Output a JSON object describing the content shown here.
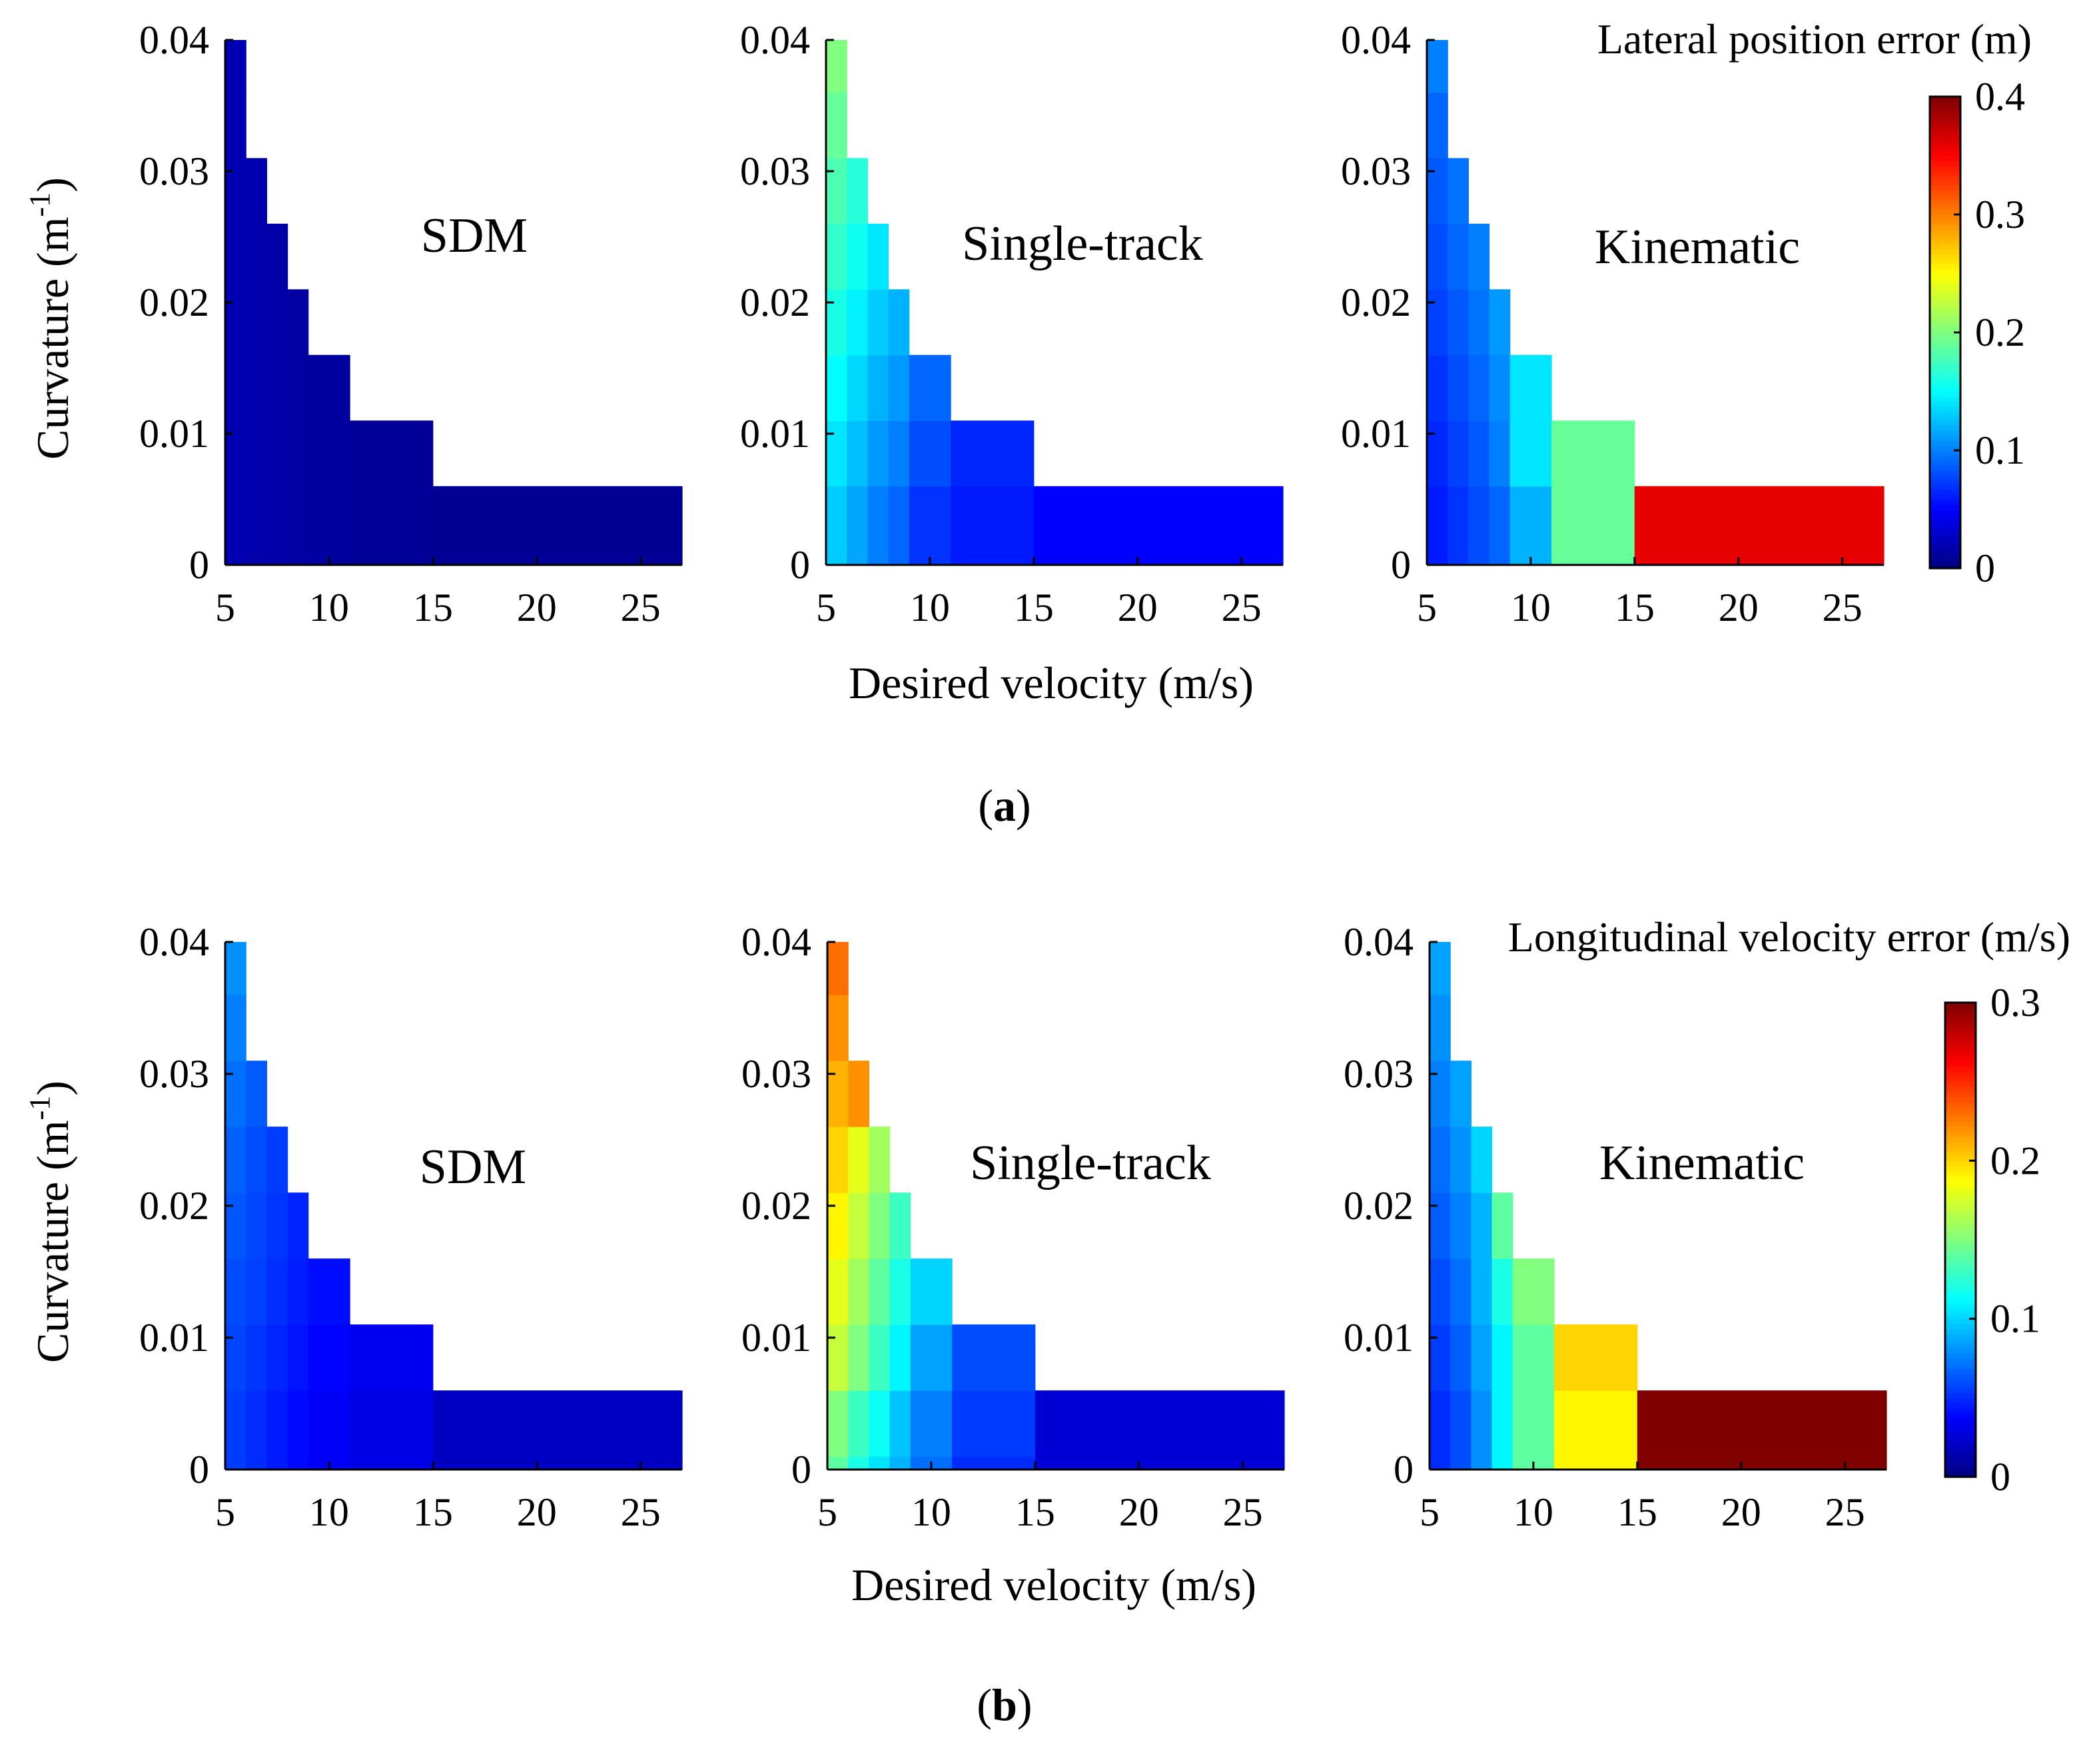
{
  "subfigure_labels": {
    "a": {
      "open": "(",
      "letter": "a",
      "close": ")"
    },
    "b": {
      "open": "(",
      "letter": "b",
      "close": ")"
    }
  },
  "shared": {
    "xlabel": "Desired velocity (m/s)",
    "ylabel_main": "Curvature (m",
    "ylabel_sup": "-1",
    "ylabel_close": ")"
  },
  "chart_data": [
    {
      "type": "heatmap",
      "panel_id": "a",
      "colorbar_title": "Lateral position error (m)",
      "colorbar_range": [
        0,
        0.4
      ],
      "colorbar_ticks": [
        "0",
        "0.1",
        "0.2",
        "0.3",
        "0.4"
      ],
      "xlim": [
        5,
        27
      ],
      "ylim": [
        0,
        0.04
      ],
      "xticks": [
        "5",
        "10",
        "15",
        "20",
        "25"
      ],
      "yticks": [
        "0",
        "0.01",
        "0.02",
        "0.03",
        "0.04"
      ],
      "xlabel": "Desired velocity (m/s)",
      "ylabel": "Curvature (m-1)",
      "velocity_edges": [
        5,
        6,
        7,
        8,
        9,
        11,
        15,
        27
      ],
      "curvature_edges": [
        0,
        0.001,
        0.006,
        0.011,
        0.016,
        0.021,
        0.026,
        0.031,
        0.036,
        0.04
      ],
      "models": [
        {
          "name": "SDM",
          "values": [
            [
              0.02,
              0.018,
              0.016,
              0.014,
              0.012,
              0.01,
              0.008
            ],
            [
              0.02,
              0.018,
              0.016,
              0.014,
              0.012,
              0.01,
              0.008
            ],
            [
              0.02,
              0.018,
              0.016,
              0.014,
              0.012,
              0.01,
              null
            ],
            [
              0.02,
              0.018,
              0.016,
              0.014,
              0.012,
              null,
              null
            ],
            [
              0.02,
              0.018,
              0.016,
              0.014,
              null,
              null,
              null
            ],
            [
              0.02,
              0.018,
              0.016,
              null,
              null,
              null,
              null
            ],
            [
              0.02,
              0.018,
              null,
              null,
              null,
              null,
              null
            ],
            [
              0.02,
              null,
              null,
              null,
              null,
              null,
              null
            ],
            [
              0.02,
              null,
              null,
              null,
              null,
              null,
              null
            ]
          ]
        },
        {
          "name": "Single-track",
          "values": [
            [
              0.13,
              0.115,
              0.1,
              0.09,
              0.07,
              0.06,
              0.05
            ],
            [
              0.13,
              0.115,
              0.1,
              0.09,
              0.07,
              0.06,
              0.05
            ],
            [
              0.14,
              0.125,
              0.11,
              0.1,
              0.08,
              0.065,
              null
            ],
            [
              0.15,
              0.135,
              0.12,
              0.11,
              0.09,
              null,
              null
            ],
            [
              0.16,
              0.145,
              0.13,
              0.12,
              null,
              null,
              null
            ],
            [
              0.17,
              0.155,
              0.14,
              null,
              null,
              null,
              null
            ],
            [
              0.18,
              0.165,
              null,
              null,
              null,
              null,
              null
            ],
            [
              0.19,
              null,
              null,
              null,
              null,
              null,
              null
            ],
            [
              0.2,
              null,
              null,
              null,
              null,
              null,
              null
            ]
          ]
        },
        {
          "name": "Kinematic",
          "values": [
            [
              0.06,
              0.07,
              0.08,
              0.09,
              0.12,
              0.19,
              0.36
            ],
            [
              0.06,
              0.07,
              0.08,
              0.09,
              0.12,
              0.19,
              0.36
            ],
            [
              0.065,
              0.075,
              0.085,
              0.1,
              0.14,
              0.19,
              null
            ],
            [
              0.07,
              0.08,
              0.09,
              0.105,
              0.14,
              null,
              null
            ],
            [
              0.075,
              0.085,
              0.095,
              0.11,
              null,
              null,
              null
            ],
            [
              0.08,
              0.09,
              0.1,
              null,
              null,
              null,
              null
            ],
            [
              0.085,
              0.095,
              null,
              null,
              null,
              null,
              null
            ],
            [
              0.09,
              null,
              null,
              null,
              null,
              null,
              null
            ],
            [
              0.1,
              null,
              null,
              null,
              null,
              null,
              null
            ]
          ]
        }
      ]
    },
    {
      "type": "heatmap",
      "panel_id": "b",
      "colorbar_title": "Longitudinal velocity error (m/s)",
      "colorbar_range": [
        0,
        0.3
      ],
      "colorbar_ticks": [
        "0",
        "0.1",
        "0.2",
        "0.3"
      ],
      "xlim": [
        5,
        27
      ],
      "ylim": [
        0,
        0.04
      ],
      "xticks": [
        "5",
        "10",
        "15",
        "20",
        "25"
      ],
      "yticks": [
        "0",
        "0.01",
        "0.02",
        "0.03",
        "0.04"
      ],
      "xlabel": "Desired velocity (m/s)",
      "ylabel": "Curvature (m-1)",
      "velocity_edges": [
        5,
        6,
        7,
        8,
        9,
        11,
        15,
        27
      ],
      "curvature_edges": [
        0,
        0.001,
        0.006,
        0.011,
        0.016,
        0.021,
        0.026,
        0.031,
        0.036,
        0.04
      ],
      "models": [
        {
          "name": "SDM",
          "values": [
            [
              0.055,
              0.05,
              0.045,
              0.04,
              0.035,
              0.03,
              0.02
            ],
            [
              0.055,
              0.05,
              0.045,
              0.04,
              0.035,
              0.03,
              0.02
            ],
            [
              0.058,
              0.053,
              0.048,
              0.043,
              0.038,
              0.033,
              null
            ],
            [
              0.06,
              0.056,
              0.051,
              0.046,
              0.041,
              null,
              null
            ],
            [
              0.063,
              0.058,
              0.053,
              0.048,
              null,
              null,
              null
            ],
            [
              0.066,
              0.06,
              0.055,
              null,
              null,
              null,
              null
            ],
            [
              0.07,
              0.064,
              null,
              null,
              null,
              null,
              null
            ],
            [
              0.075,
              null,
              null,
              null,
              null,
              null,
              null
            ],
            [
              0.08,
              null,
              null,
              null,
              null,
              null,
              null
            ]
          ]
        },
        {
          "name": "Single-track",
          "values": [
            [
              0.14,
              0.12,
              0.105,
              0.09,
              0.07,
              0.05,
              0.025
            ],
            [
              0.15,
              0.13,
              0.115,
              0.095,
              0.075,
              0.055,
              0.025
            ],
            [
              0.17,
              0.15,
              0.13,
              0.11,
              0.085,
              0.06,
              null
            ],
            [
              0.18,
              0.16,
              0.14,
              0.12,
              0.1,
              null,
              null
            ],
            [
              0.19,
              0.17,
              0.15,
              0.13,
              null,
              null,
              null
            ],
            [
              0.2,
              0.18,
              0.16,
              null,
              null,
              null,
              null
            ],
            [
              0.21,
              0.22,
              null,
              null,
              null,
              null,
              null
            ],
            [
              0.22,
              null,
              null,
              null,
              null,
              null,
              null
            ],
            [
              0.23,
              null,
              null,
              null,
              null,
              null,
              null
            ]
          ]
        },
        {
          "name": "Kinematic",
          "values": [
            [
              0.05,
              0.06,
              0.08,
              0.11,
              0.14,
              0.19,
              0.3
            ],
            [
              0.05,
              0.06,
              0.08,
              0.11,
              0.14,
              0.19,
              0.3
            ],
            [
              0.055,
              0.065,
              0.085,
              0.11,
              0.14,
              0.2,
              null
            ],
            [
              0.06,
              0.07,
              0.09,
              0.12,
              0.15,
              null,
              null
            ],
            [
              0.065,
              0.075,
              0.09,
              0.14,
              null,
              null,
              null
            ],
            [
              0.07,
              0.08,
              0.1,
              null,
              null,
              null,
              null
            ],
            [
              0.075,
              0.085,
              null,
              null,
              null,
              null,
              null
            ],
            [
              0.08,
              null,
              null,
              null,
              null,
              null,
              null
            ],
            [
              0.085,
              null,
              null,
              null,
              null,
              null,
              null
            ]
          ]
        }
      ]
    }
  ]
}
